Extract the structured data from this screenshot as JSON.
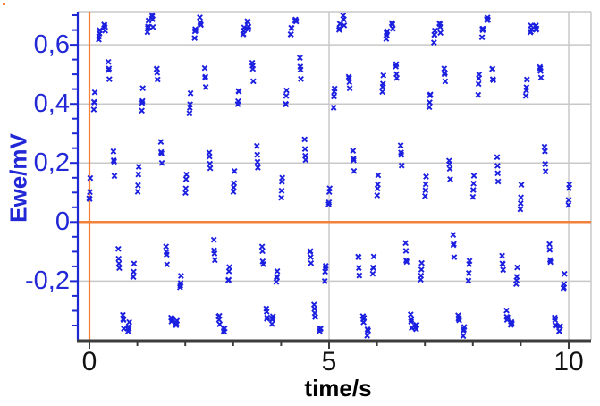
{
  "figure": {
    "kind": "electrochemistry-signal-plot",
    "background": "#ffffff"
  },
  "chart_data": {
    "type": "scatter",
    "title": "",
    "xlabel": "time/s",
    "ylabel": "Ewe/mV",
    "xlim": [
      -0.2425,
      10.466
    ],
    "ylim": [
      -0.3985,
      0.7122
    ],
    "x_major_ticks": [
      0,
      5,
      10
    ],
    "x_major_labels": [
      "0",
      "5",
      "10"
    ],
    "x_minor_step": 1,
    "y_major_ticks": [
      0.6,
      0.4,
      0.2,
      0,
      -0.2
    ],
    "y_major_labels": [
      "0,6",
      "0,4",
      "0,2",
      "0",
      "-0,2"
    ],
    "y_minor_step": 0.05,
    "grid": true,
    "legend_position": "none",
    "marker": "x",
    "marker_size_px": 7,
    "crosshair": {
      "x": 0,
      "y": 0
    },
    "colors": {
      "marker_blue": "#1b1fe0",
      "axis_blue": "#1e28d2",
      "label_blue": "#2228d5",
      "x_label_black": "#111111",
      "dark_axis": "#3c3c3c",
      "gridline_gray": "#c8c8c8",
      "crosshair_orange": "#f2813a"
    },
    "signal": {
      "description": "~1 Hz sinusoidal Ewe trace sampled in short bursts; Ewe = offset + amplitude*sin(2*pi*f*t + phase) + noise",
      "offset": 0.16,
      "amplitude": 0.53,
      "frequency_hz": 1.0,
      "phase_rad": -0.15,
      "t_start": 0,
      "t_end": 10.03,
      "burst_period_s": 0.1,
      "points_per_burst": 4,
      "burst_offsets_s": [
        0,
        0.007,
        0.013,
        0.021
      ],
      "burst_time_jitter_s": 0.012,
      "amplitude_jitter": 0.014,
      "noise_amplitude": 0.013,
      "approx_point_count": 404,
      "y_max_approx": 0.69,
      "y_min_approx": -0.385
    }
  }
}
